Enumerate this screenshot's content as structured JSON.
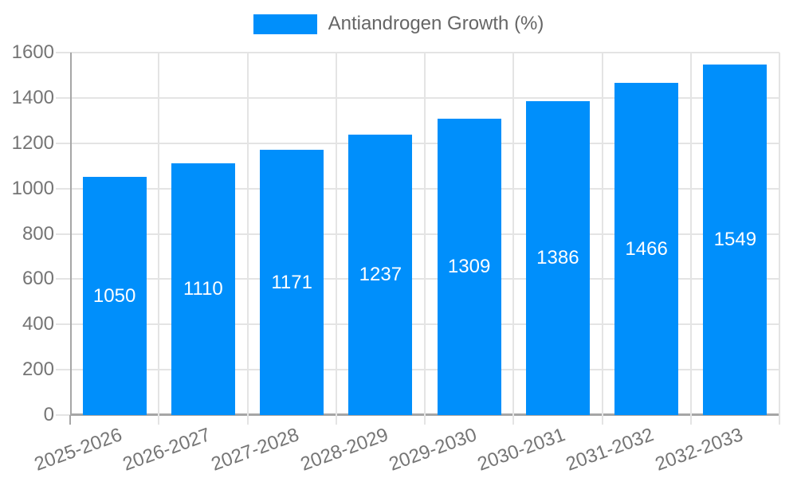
{
  "chart_data": {
    "type": "bar",
    "series_name": "Antiandrogen Growth (%)",
    "legend": {
      "position": "top",
      "label": "Antiandrogen Growth (%)"
    },
    "categories": [
      "2025-2026",
      "2026-2027",
      "2027-2028",
      "2028-2029",
      "2029-2030",
      "2030-2031",
      "2031-2032",
      "2032-2033"
    ],
    "values": [
      1050,
      1110,
      1171,
      1237,
      1309,
      1386,
      1466,
      1549
    ],
    "bar_labels": [
      "1050",
      "1110",
      "1171",
      "1237",
      "1309",
      "1386",
      "1466",
      "1549"
    ],
    "xlabel": "",
    "ylabel": "",
    "ylim": [
      0,
      1600
    ],
    "ytick_step": 200,
    "ytick_labels": [
      "0",
      "200",
      "400",
      "600",
      "800",
      "1000",
      "1200",
      "1400",
      "1600"
    ],
    "grid": true,
    "x_label_rotation_deg": -20,
    "colors": {
      "bar": "#008FFB",
      "grid": "#e4e4e4",
      "axis": "#a6a6a6",
      "tick_text": "#757575",
      "legend_text": "#666666",
      "bar_label_text": "#ffffff",
      "background": "#ffffff"
    }
  }
}
